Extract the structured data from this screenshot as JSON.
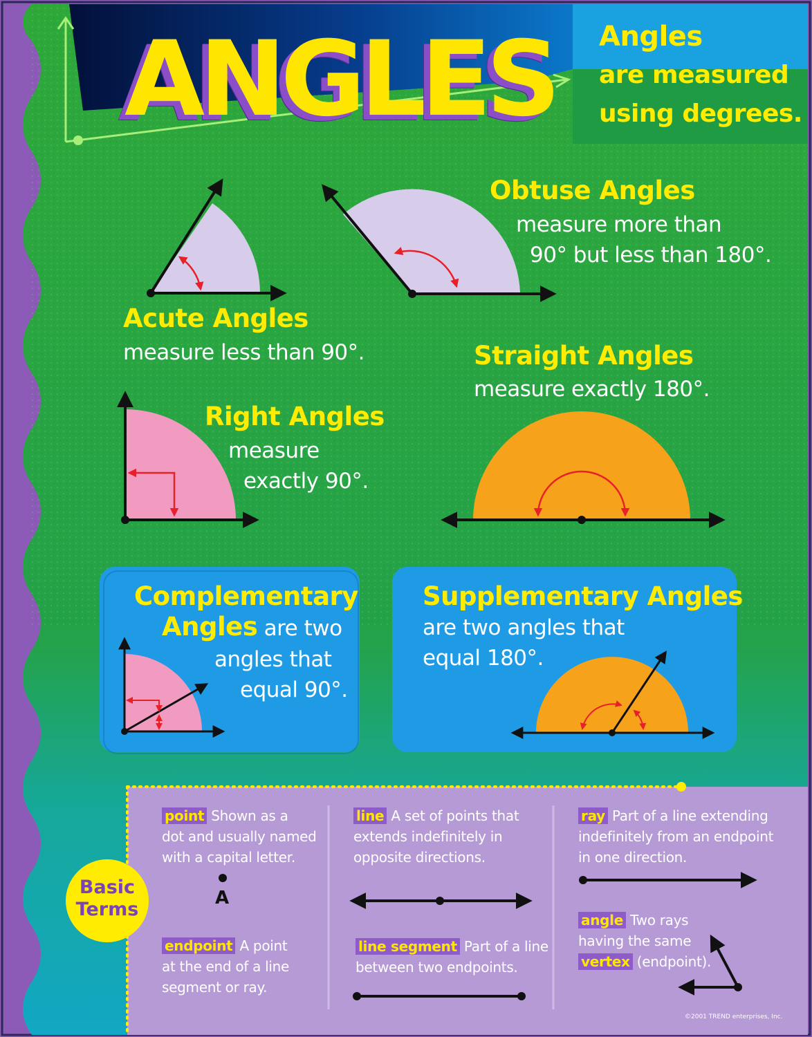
{
  "title": "ANGLES",
  "intro": {
    "line1": "Angles",
    "line2": "are measured",
    "line3": "using degrees."
  },
  "acute": {
    "heading": "Acute Angles",
    "text": "measure less than 90°."
  },
  "obtuse": {
    "heading": "Obtuse Angles",
    "line1": "measure more than",
    "line2": "90° but less than 180°."
  },
  "right": {
    "heading": "Right Angles",
    "line1": "measure",
    "line2": "exactly 90°."
  },
  "straight": {
    "heading": "Straight Angles",
    "text": "measure exactly 180°."
  },
  "complementary": {
    "heading1": "Complementary",
    "heading2": "Angles",
    "text1": " are two",
    "text2": "angles that",
    "text3": "equal 90°."
  },
  "supplementary": {
    "heading": "Supplementary Angles",
    "text1": "are two angles that",
    "text2": "equal 180°."
  },
  "basic_terms": {
    "badge_line1": "Basic",
    "badge_line2": "Terms",
    "point": {
      "term": "point",
      "def1": " Shown as a",
      "def2": "dot and usually named",
      "def3": "with a capital letter.",
      "label": "A"
    },
    "endpoint": {
      "term": "endpoint",
      "def1": " A point",
      "def2": "at the end of a line",
      "def3": "segment or ray."
    },
    "line": {
      "term": "line",
      "def1": " A set of points that",
      "def2": "extends indefinitely in",
      "def3": "opposite directions."
    },
    "line_segment": {
      "term": "line segment",
      "def1": " Part of a line",
      "def2": "between two endpoints."
    },
    "ray": {
      "term": "ray",
      "def1": " Part of a line extending",
      "def2": "indefinitely from an endpoint",
      "def3": "in one direction."
    },
    "angle": {
      "term": "angle",
      "def1": " Two rays",
      "def2": "having the same",
      "vertex_term": "vertex",
      "def3": " (endpoint)."
    }
  },
  "copyright": "©2001 TREND enterprises, Inc.",
  "colors": {
    "green": "#27a83c",
    "blue_box": "#1f9be6",
    "lavender": "#b59ad6",
    "yellow": "#ffec00",
    "orange": "#f7a21b",
    "pink": "#f29bc1",
    "light_purple": "#d7cdeb",
    "red_arrow": "#e8202a"
  }
}
